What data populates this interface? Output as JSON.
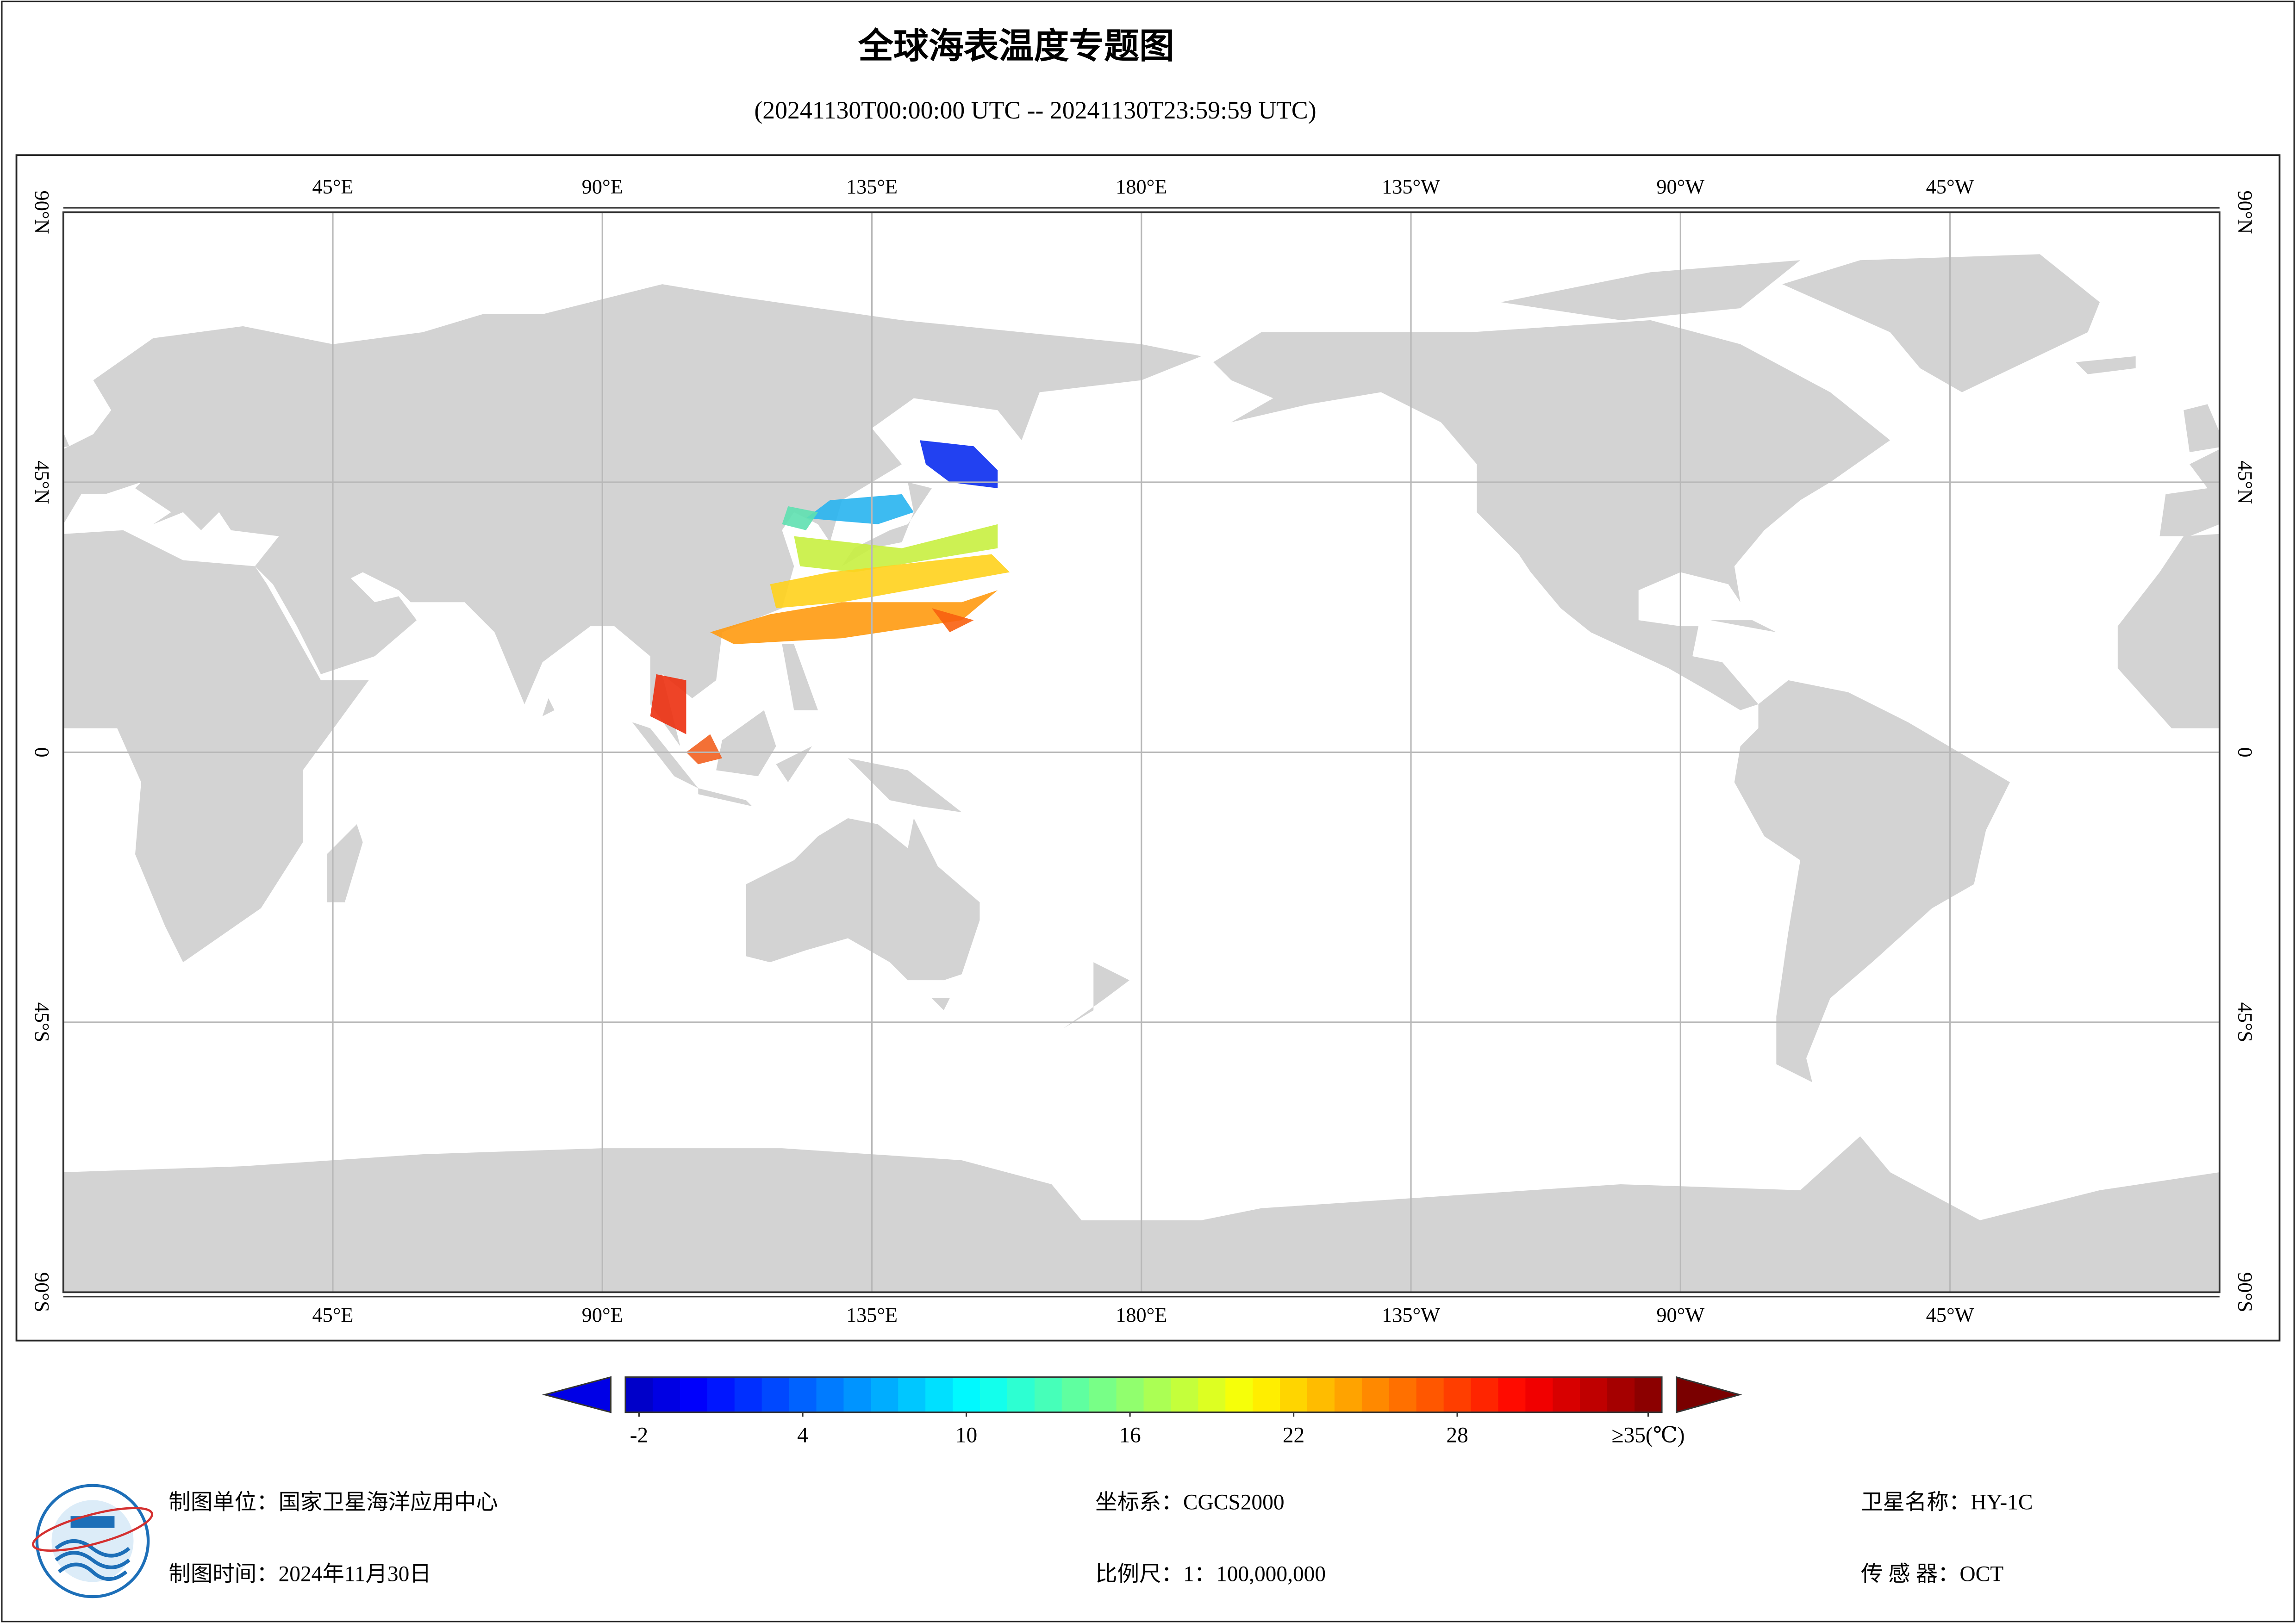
{
  "header": {
    "title": "全球海表温度专题图",
    "subtitle": "(20241130T00:00:00 UTC -- 20241130T23:59:59 UTC)"
  },
  "map": {
    "lonlim": [
      0,
      360
    ],
    "latlim": [
      -90,
      90
    ],
    "lon_ticks": [
      {
        "value": 45,
        "label": "45°E"
      },
      {
        "value": 90,
        "label": "90°E"
      },
      {
        "value": 135,
        "label": "135°E"
      },
      {
        "value": 180,
        "label": "180°E"
      },
      {
        "value": -135,
        "label": "135°W"
      },
      {
        "value": -90,
        "label": "90°W"
      },
      {
        "value": -45,
        "label": "45°W"
      }
    ],
    "lat_ticks": [
      {
        "value": 90,
        "label": "90°N"
      },
      {
        "value": 45,
        "label": "45°N"
      },
      0,
      {
        "value": -45,
        "label": "45°S"
      },
      {
        "value": -90,
        "label": "90°S"
      }
    ],
    "grid": true
  },
  "colorbar": {
    "clim": [
      -2.5,
      35.5
    ],
    "ticks": [
      -2,
      4,
      10,
      16,
      22,
      28,
      {
        "value": 35,
        "label": "≥35(℃)"
      }
    ]
  },
  "footer": {
    "unit": "制图单位：国家卫星海洋应用中心",
    "crs": "坐标系：CGCS2000",
    "satellite": "卫星名称：HY-1C",
    "date": "制图时间：2024年11月30日",
    "scale": "比例尺：1：100,000,000",
    "sensor": "传 感 器：OCT"
  }
}
